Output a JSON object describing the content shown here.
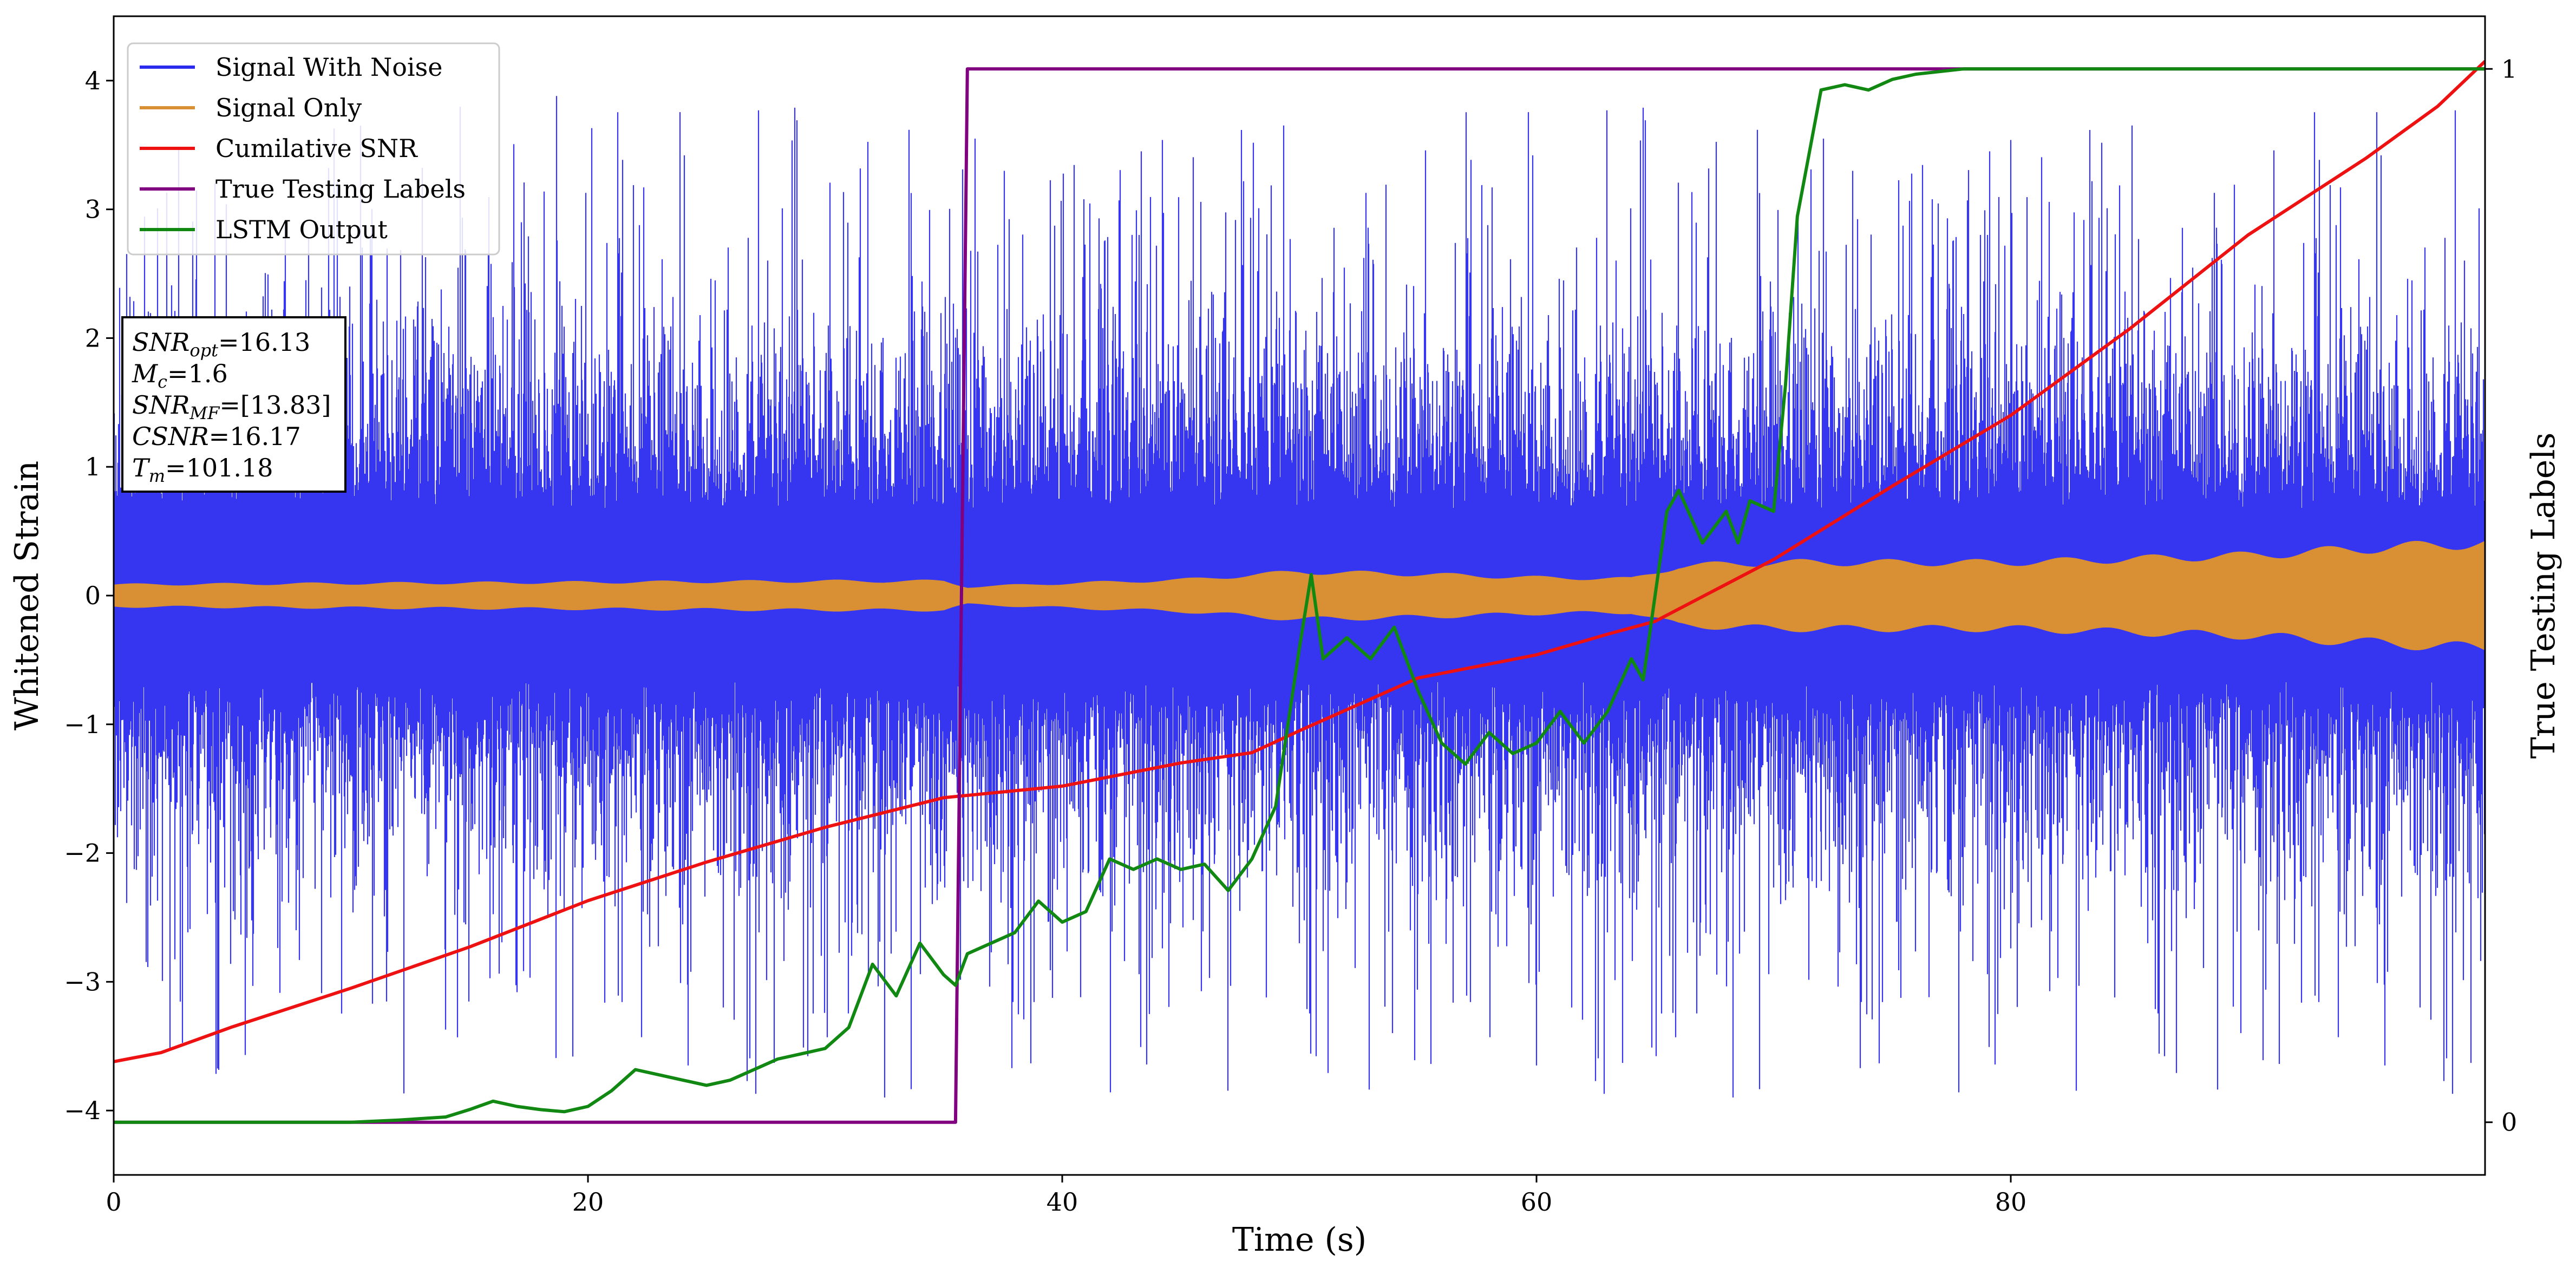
{
  "chart_data": {
    "type": "line",
    "xlabel": "Time (s)",
    "ylabel": "Whitened Strain",
    "y2label": "True Testing Labels",
    "xlim": [
      0,
      100
    ],
    "ylim": [
      -4.5,
      4.5
    ],
    "y2lim": [
      -0.05,
      1.05
    ],
    "xticks": [
      0,
      20,
      40,
      60,
      80
    ],
    "yticks": [
      -4,
      -3,
      -2,
      -1,
      0,
      1,
      2,
      3,
      4
    ],
    "y2ticks": [
      0,
      1
    ],
    "grid": false,
    "legend_position": "top-left",
    "series": [
      {
        "name": "Signal With Noise",
        "axis": "left",
        "color": "#2b2bf0",
        "style": "dense-noise",
        "envelope_typical": [
          -1.5,
          1.6
        ],
        "envelope_extreme": [
          -4.1,
          4.1
        ]
      },
      {
        "name": "Signal Only",
        "axis": "left",
        "color": "#d98f33",
        "style": "chirp-band",
        "x": [
          0,
          10,
          20,
          30,
          35,
          36,
          40,
          45,
          50,
          55,
          60,
          64,
          66,
          70,
          80,
          90,
          95,
          100
        ],
        "amplitude": [
          0.09,
          0.1,
          0.11,
          0.12,
          0.12,
          0.07,
          0.1,
          0.13,
          0.2,
          0.18,
          0.15,
          0.14,
          0.25,
          0.28,
          0.28,
          0.34,
          0.4,
          0.45
        ]
      },
      {
        "name": "Cumilative SNR",
        "axis": "left",
        "color": "#ee1111",
        "x": [
          0,
          2,
          5,
          10,
          15,
          20,
          25,
          30,
          35,
          40,
          45,
          48,
          50,
          55,
          60,
          63,
          65,
          70,
          75,
          80,
          85,
          90,
          95,
          98,
          100
        ],
        "y": [
          -3.62,
          -3.55,
          -3.35,
          -3.05,
          -2.73,
          -2.37,
          -2.07,
          -1.8,
          -1.57,
          -1.48,
          -1.3,
          -1.22,
          -1.05,
          -0.64,
          -0.46,
          -0.3,
          -0.2,
          0.28,
          0.85,
          1.4,
          2.07,
          2.8,
          3.4,
          3.8,
          4.15
        ]
      },
      {
        "name": "True Testing Labels",
        "axis": "right",
        "color": "#800080",
        "x": [
          0,
          35.5,
          36.0,
          100
        ],
        "y": [
          0,
          0,
          1,
          1
        ]
      },
      {
        "name": "LSTM Output",
        "axis": "right",
        "color": "#118811",
        "x": [
          0,
          10,
          12,
          14,
          15,
          16,
          17,
          18,
          19,
          20,
          21,
          22,
          23,
          24,
          25,
          26,
          27,
          28,
          29,
          30,
          31,
          32,
          33,
          34,
          35,
          35.5,
          36,
          37,
          38,
          39,
          40,
          41,
          42,
          43,
          44,
          45,
          46,
          47,
          48,
          49,
          50,
          50.5,
          51,
          52,
          53,
          54,
          55,
          56,
          57,
          58,
          59,
          60,
          61,
          62,
          63,
          64,
          64.5,
          65,
          65.5,
          66,
          67,
          68,
          68.5,
          69,
          70,
          70.5,
          71,
          71.5,
          72,
          73,
          74,
          75,
          76,
          78,
          80,
          85,
          100
        ],
        "y": [
          0,
          0,
          0.002,
          0.005,
          0.012,
          0.02,
          0.015,
          0.012,
          0.01,
          0.015,
          0.03,
          0.05,
          0.045,
          0.04,
          0.035,
          0.04,
          0.05,
          0.06,
          0.065,
          0.07,
          0.09,
          0.15,
          0.12,
          0.17,
          0.14,
          0.13,
          0.16,
          0.17,
          0.18,
          0.21,
          0.19,
          0.2,
          0.25,
          0.24,
          0.25,
          0.24,
          0.245,
          0.22,
          0.25,
          0.3,
          0.45,
          0.52,
          0.44,
          0.46,
          0.44,
          0.47,
          0.41,
          0.36,
          0.34,
          0.37,
          0.35,
          0.36,
          0.39,
          0.36,
          0.39,
          0.44,
          0.42,
          0.5,
          0.58,
          0.6,
          0.55,
          0.58,
          0.55,
          0.59,
          0.58,
          0.7,
          0.86,
          0.92,
          0.98,
          0.985,
          0.98,
          0.99,
          0.995,
          1.0,
          1.0,
          1.0,
          1.0
        ]
      }
    ],
    "annotation": {
      "lines": [
        {
          "var": "SNR",
          "sub": "opt",
          "rest": "=16.13"
        },
        {
          "var": "M",
          "sub": "c",
          "rest": "=1.6"
        },
        {
          "var": "SNR",
          "sub": "MF",
          "rest": "=[13.83]"
        },
        {
          "var": "CSNR",
          "sub": "",
          "rest": "=16.17"
        },
        {
          "var": "T",
          "sub": "m",
          "rest": "=101.18"
        }
      ]
    }
  }
}
